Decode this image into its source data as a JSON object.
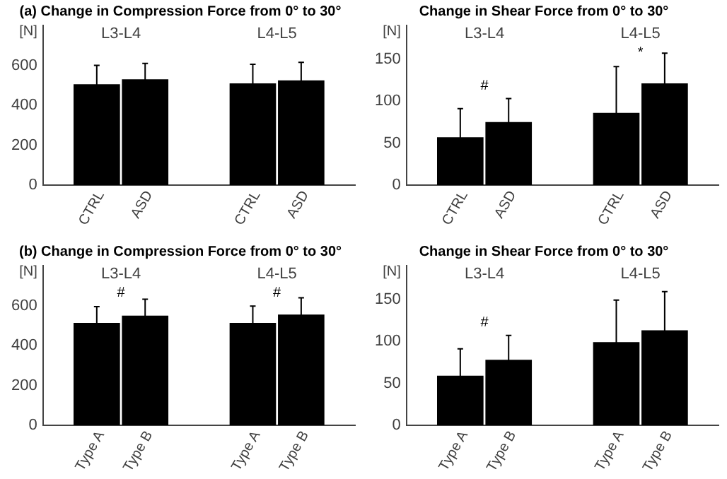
{
  "chart_data": [
    {
      "type": "bar",
      "title": "(a) Change in Compression Force from 0° to 30°",
      "ylabel": "[N]",
      "categories": [
        "L3-L4",
        "L4-L5"
      ],
      "series": [
        {
          "name": "CTRL",
          "color": "#000000",
          "values": [
            505,
            510
          ],
          "errors": [
            95,
            95
          ]
        },
        {
          "name": "ASD",
          "color": "#000000",
          "values": [
            530,
            525
          ],
          "errors": [
            80,
            90
          ]
        }
      ],
      "ylim": [
        0,
        800
      ],
      "yticks": [
        0,
        200,
        400,
        600
      ],
      "grid": false,
      "legend": false
    },
    {
      "type": "bar",
      "title": "Change in Shear Force from 0° to 30°",
      "ylabel": "[N]",
      "categories": [
        "L3-L4",
        "L4-L5"
      ],
      "series": [
        {
          "name": "CTRL",
          "color": "#000000",
          "values": [
            57,
            86
          ],
          "errors": [
            34,
            55
          ]
        },
        {
          "name": "ASD",
          "color": "#000000",
          "values": [
            75,
            121
          ],
          "errors": [
            28,
            36
          ]
        }
      ],
      "ylim": [
        0,
        190
      ],
      "yticks": [
        0,
        50,
        100,
        150
      ],
      "grid": false,
      "legend": false,
      "annotations": [
        "#",
        "*"
      ]
    },
    {
      "type": "bar",
      "title": "(b) Change in Compression Force from 0° to 30°",
      "ylabel": "[N]",
      "categories": [
        "L3-L4",
        "L4-L5"
      ],
      "series": [
        {
          "name": "Type A",
          "color": "#000000",
          "values": [
            513,
            513
          ],
          "errors": [
            82,
            84
          ]
        },
        {
          "name": "Type B",
          "color": "#000000",
          "values": [
            550,
            555
          ],
          "errors": [
            82,
            84
          ]
        }
      ],
      "ylim": [
        0,
        800
      ],
      "yticks": [
        0,
        200,
        400,
        600
      ],
      "grid": false,
      "legend": false,
      "annotations": [
        "#",
        "#"
      ]
    },
    {
      "type": "bar",
      "title": "Change in Shear Force from 0° to 30°",
      "ylabel": "[N]",
      "categories": [
        "L3-L4",
        "L4-L5"
      ],
      "series": [
        {
          "name": "Type A",
          "color": "#000000",
          "values": [
            59,
            99
          ],
          "errors": [
            32,
            50
          ]
        },
        {
          "name": "Type B",
          "color": "#000000",
          "values": [
            78,
            113
          ],
          "errors": [
            29,
            46
          ]
        }
      ],
      "ylim": [
        0,
        190
      ],
      "yticks": [
        0,
        50,
        100,
        150
      ],
      "grid": false,
      "legend": false,
      "annotations": [
        "#"
      ]
    }
  ]
}
